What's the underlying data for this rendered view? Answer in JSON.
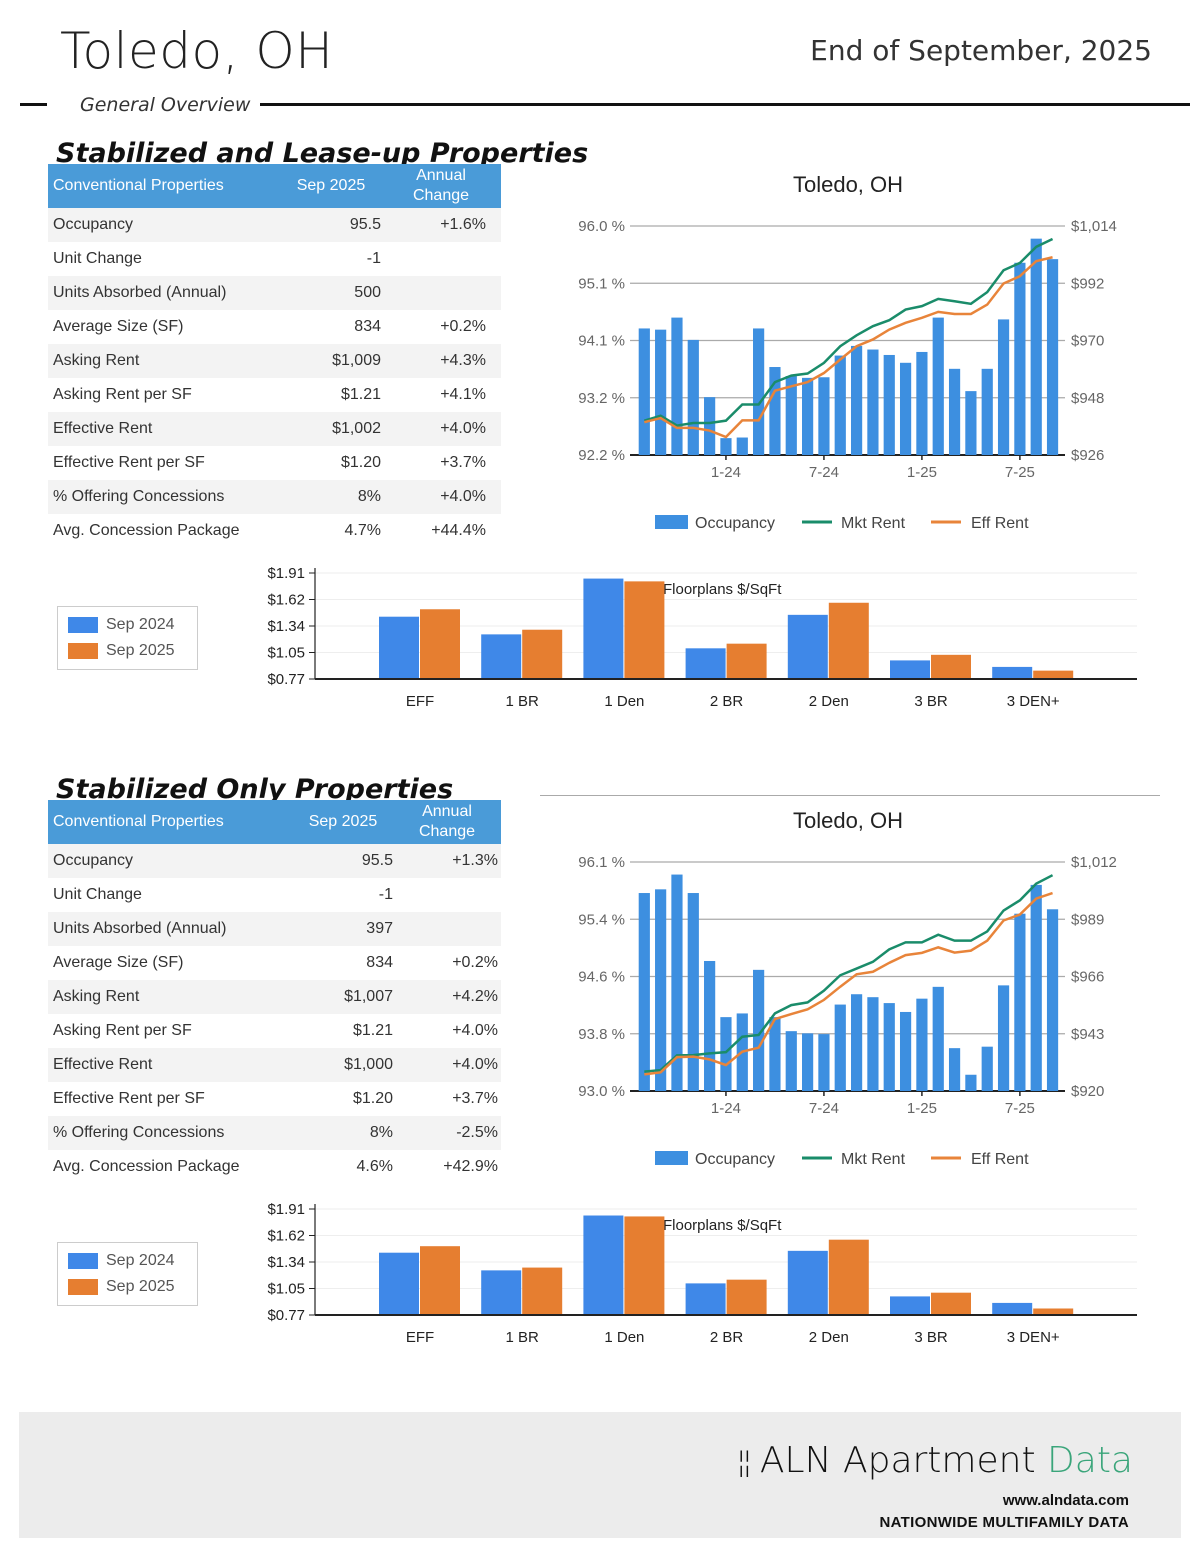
{
  "header": {
    "title": "Toledo, OH",
    "date": "End of September, 2025",
    "subtitle": "General Overview"
  },
  "sections": [
    {
      "heading": "Stabilized and Lease-up Properties",
      "table": {
        "headers": [
          "Conventional Properties",
          "Sep 2025",
          "Annual Change"
        ],
        "rows": [
          [
            "Occupancy",
            "95.5",
            "+1.6%"
          ],
          [
            "Unit Change",
            "-1",
            ""
          ],
          [
            "Units Absorbed (Annual)",
            "500",
            ""
          ],
          [
            "Average Size (SF)",
            "834",
            "+0.2%"
          ],
          [
            "Asking Rent",
            "$1,009",
            "+4.3%"
          ],
          [
            "Asking Rent per SF",
            "$1.21",
            "+4.1%"
          ],
          [
            "Effective Rent",
            "$1,002",
            "+4.0%"
          ],
          [
            "Effective Rent per SF",
            "$1.20",
            "+3.7%"
          ],
          [
            "% Offering Concessions",
            "8%",
            "+4.0%"
          ],
          [
            "Avg. Concession Package",
            "4.7%",
            "+44.4%"
          ]
        ]
      }
    },
    {
      "heading": "Stabilized Only Properties",
      "table": {
        "headers": [
          "Conventional Properties",
          "Sep 2025",
          "Annual Change"
        ],
        "rows": [
          [
            "Occupancy",
            "95.5",
            "+1.3%"
          ],
          [
            "Unit Change",
            "-1",
            ""
          ],
          [
            "Units Absorbed (Annual)",
            "397",
            ""
          ],
          [
            "Average Size (SF)",
            "834",
            "+0.2%"
          ],
          [
            "Asking Rent",
            "$1,007",
            "+4.2%"
          ],
          [
            "Asking Rent per SF",
            "$1.21",
            "+4.0%"
          ],
          [
            "Effective Rent",
            "$1,000",
            "+4.0%"
          ],
          [
            "Effective Rent per SF",
            "$1.20",
            "+3.7%"
          ],
          [
            "% Offering Concessions",
            "8%",
            "-2.5%"
          ],
          [
            "Avg. Concession Package",
            "4.6%",
            "+42.9%"
          ]
        ]
      }
    }
  ],
  "bar_legend": [
    "Sep 2024",
    "Sep 2025"
  ],
  "colors": {
    "header_blue": "#4a9bd8",
    "occupancy": "#3d8fe0",
    "mkt_rent": "#1a8c6a",
    "eff_rent": "#e8843a",
    "sep_2024": "#3f88e8",
    "sep_2025": "#e67e30",
    "brand_accent": "#3aa57a"
  },
  "chart_data": [
    {
      "type": "bar+line",
      "title": "Toledo, OH",
      "x": [
        "8-23",
        "9-23",
        "10-23",
        "11-23",
        "12-23",
        "1-24",
        "2-24",
        "3-24",
        "4-24",
        "5-24",
        "6-24",
        "7-24",
        "8-24",
        "9-24",
        "10-24",
        "11-24",
        "12-24",
        "1-25",
        "2-25",
        "3-25",
        "4-25",
        "5-25",
        "6-25",
        "7-25",
        "8-25",
        "9-25"
      ],
      "x_tick_labels": [
        "1-24",
        "7-24",
        "1-25",
        "7-25"
      ],
      "ylim": [
        92.2,
        96.0
      ],
      "y_tick_labels": [
        "96.0 %",
        "95.1 %",
        "94.1 %",
        "93.2 %",
        "92.2 %"
      ],
      "y2lim": [
        926,
        1014
      ],
      "y2_tick_labels": [
        "$1,014",
        "$992",
        "$970",
        "$948",
        "$926"
      ],
      "grid": true,
      "legend": "bottom",
      "series": [
        {
          "name": "Occupancy",
          "type": "bar",
          "axis": "left",
          "values": [
            94.3,
            94.28,
            94.48,
            94.11,
            93.16,
            92.48,
            92.49,
            94.3,
            93.66,
            93.51,
            93.48,
            93.49,
            93.85,
            94.01,
            93.95,
            93.86,
            93.73,
            93.91,
            94.48,
            93.63,
            93.26,
            93.63,
            94.45,
            95.39,
            95.79,
            95.45
          ]
        },
        {
          "name": "Mkt Rent",
          "type": "line",
          "axis": "right",
          "values": [
            939.2,
            941.1,
            937.3,
            938.3,
            938.3,
            939.2,
            945.4,
            945.4,
            954.0,
            956.5,
            957.3,
            961.4,
            967.8,
            972.0,
            975.5,
            977.8,
            981.9,
            983.2,
            986.0,
            985.1,
            984.1,
            988.6,
            997.0,
            999.8,
            1006.0,
            1009.0
          ]
        },
        {
          "name": "Eff Rent",
          "type": "line",
          "axis": "right",
          "values": [
            938.6,
            940.2,
            936.4,
            936.4,
            935.4,
            932.9,
            939.3,
            939.3,
            950.7,
            952.4,
            954.0,
            957.5,
            962.7,
            967.8,
            970.4,
            974.2,
            976.8,
            978.7,
            981.0,
            980.2,
            980.2,
            983.8,
            991.9,
            994.7,
            1000.5,
            1002.0
          ]
        }
      ]
    },
    {
      "type": "bar",
      "title": "Floorplans $/SqFt",
      "categories": [
        "EFF",
        "1 BR",
        "1 Den",
        "2 BR",
        "2 Den",
        "3 BR",
        "3 DEN+"
      ],
      "ylim": [
        0.77,
        1.91
      ],
      "y_tick_labels": [
        "$1.91",
        "$1.62",
        "$1.34",
        "$1.05",
        "$0.77"
      ],
      "grid": true,
      "legend": "left",
      "series": [
        {
          "name": "Sep 2024",
          "values": [
            1.44,
            1.25,
            1.85,
            1.1,
            1.46,
            0.97,
            0.9
          ]
        },
        {
          "name": "Sep 2025",
          "values": [
            1.52,
            1.3,
            1.82,
            1.15,
            1.59,
            1.03,
            0.86
          ]
        }
      ]
    },
    {
      "type": "bar+line",
      "title": "Toledo, OH",
      "x": [
        "8-23",
        "9-23",
        "10-23",
        "11-23",
        "12-23",
        "1-24",
        "2-24",
        "3-24",
        "4-24",
        "5-24",
        "6-24",
        "7-24",
        "8-24",
        "9-24",
        "10-24",
        "11-24",
        "12-24",
        "1-25",
        "2-25",
        "3-25",
        "4-25",
        "5-25",
        "6-25",
        "7-25",
        "8-25",
        "9-25"
      ],
      "x_tick_labels": [
        "1-24",
        "7-24",
        "1-25",
        "7-25"
      ],
      "ylim": [
        93.0,
        96.1
      ],
      "y_tick_labels": [
        "96.1 %",
        "95.4 %",
        "94.6 %",
        "93.8 %",
        "93.0 %"
      ],
      "y2lim": [
        920,
        1012
      ],
      "y2_tick_labels": [
        "$1,012",
        "$989",
        "$966",
        "$943",
        "$920"
      ],
      "grid": true,
      "legend": "bottom",
      "series": [
        {
          "name": "Occupancy",
          "type": "bar",
          "axis": "left",
          "values": [
            95.68,
            95.73,
            95.93,
            95.68,
            94.76,
            94.0,
            94.05,
            94.64,
            94.0,
            93.81,
            93.78,
            93.77,
            94.17,
            94.31,
            94.27,
            94.19,
            94.07,
            94.25,
            94.41,
            93.58,
            93.22,
            93.6,
            94.43,
            95.4,
            95.79,
            95.46
          ]
        },
        {
          "name": "Mkt Rent",
          "type": "line",
          "axis": "right",
          "values": [
            927.8,
            928.4,
            934.3,
            934.4,
            935.1,
            935.6,
            941.8,
            942.5,
            951.2,
            954.5,
            955.6,
            960.3,
            966.5,
            969.2,
            971.9,
            976.9,
            979.7,
            979.7,
            982.8,
            980.4,
            980.4,
            984.1,
            992.5,
            996.6,
            1003.3,
            1006.7
          ]
        },
        {
          "name": "Eff Rent",
          "type": "line",
          "axis": "right",
          "values": [
            926.7,
            927.5,
            933.6,
            933.8,
            932.7,
            930.4,
            935.8,
            937.4,
            948.9,
            950.9,
            952.8,
            956.6,
            961.9,
            966.9,
            967.9,
            971.5,
            974.6,
            975.5,
            977.7,
            975.6,
            976.4,
            980.4,
            988.5,
            990.9,
            997.3,
            999.5
          ]
        }
      ]
    },
    {
      "type": "bar",
      "title": "Floorplans $/SqFt",
      "categories": [
        "EFF",
        "1 BR",
        "1 Den",
        "2 BR",
        "2 Den",
        "3 BR",
        "3 DEN+"
      ],
      "ylim": [
        0.77,
        1.91
      ],
      "y_tick_labels": [
        "$1.91",
        "$1.62",
        "$1.34",
        "$1.05",
        "$0.77"
      ],
      "grid": true,
      "legend": "left",
      "series": [
        {
          "name": "Sep 2024",
          "values": [
            1.44,
            1.25,
            1.84,
            1.11,
            1.46,
            0.97,
            0.9
          ]
        },
        {
          "name": "Sep 2025",
          "values": [
            1.51,
            1.28,
            1.83,
            1.15,
            1.58,
            1.01,
            0.84
          ]
        }
      ]
    }
  ],
  "footer": {
    "brand_main": "ALN Apartment",
    "brand_accent": "Data",
    "url": "www.alndata.com",
    "tagline": "NATIONWIDE MULTIFAMILY DATA"
  }
}
